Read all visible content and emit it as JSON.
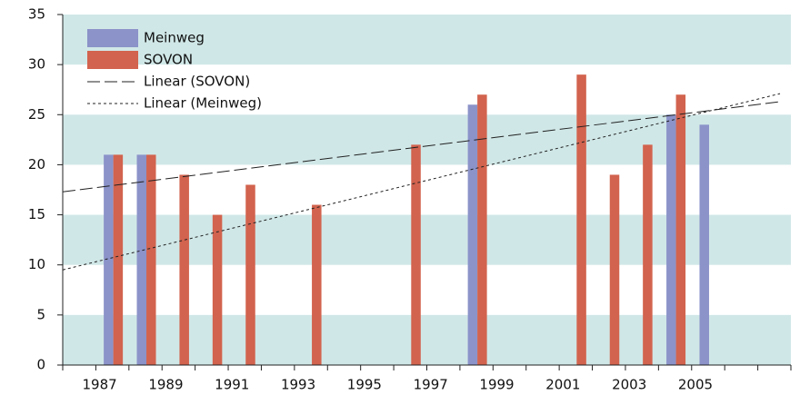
{
  "chart_data": {
    "type": "bar",
    "categories": [
      null,
      "1987",
      null,
      "1989",
      null,
      "1991",
      null,
      "1993",
      null,
      "1995",
      null,
      "1997",
      null,
      "1999",
      null,
      "2001",
      null,
      "2003",
      null,
      "2005",
      null,
      null
    ],
    "series": [
      {
        "name": "Meinweg",
        "color": "#8b93c9",
        "values": [
          null,
          21,
          21,
          null,
          null,
          null,
          null,
          null,
          null,
          null,
          null,
          null,
          26,
          null,
          null,
          null,
          null,
          null,
          25,
          24,
          null,
          null
        ]
      },
      {
        "name": "SOVON",
        "color": "#d2634e",
        "values": [
          null,
          21,
          21,
          19,
          15,
          18,
          null,
          16,
          null,
          null,
          22,
          null,
          27,
          null,
          null,
          29,
          19,
          22,
          27,
          null,
          null,
          null
        ]
      }
    ],
    "trendlines": [
      {
        "name": "Linear (SOVON)",
        "dash": "14 5",
        "values": [
          17.3,
          26.3
        ]
      },
      {
        "name": "Linear (Meinweg)",
        "dash": "3 3",
        "values": [
          9.5,
          27.1
        ]
      }
    ],
    "ylim": [
      0,
      35
    ],
    "yticks": [
      0,
      5,
      10,
      15,
      20,
      25,
      30,
      35
    ],
    "band_color": "#d0e7e7",
    "legend": "top-left"
  }
}
